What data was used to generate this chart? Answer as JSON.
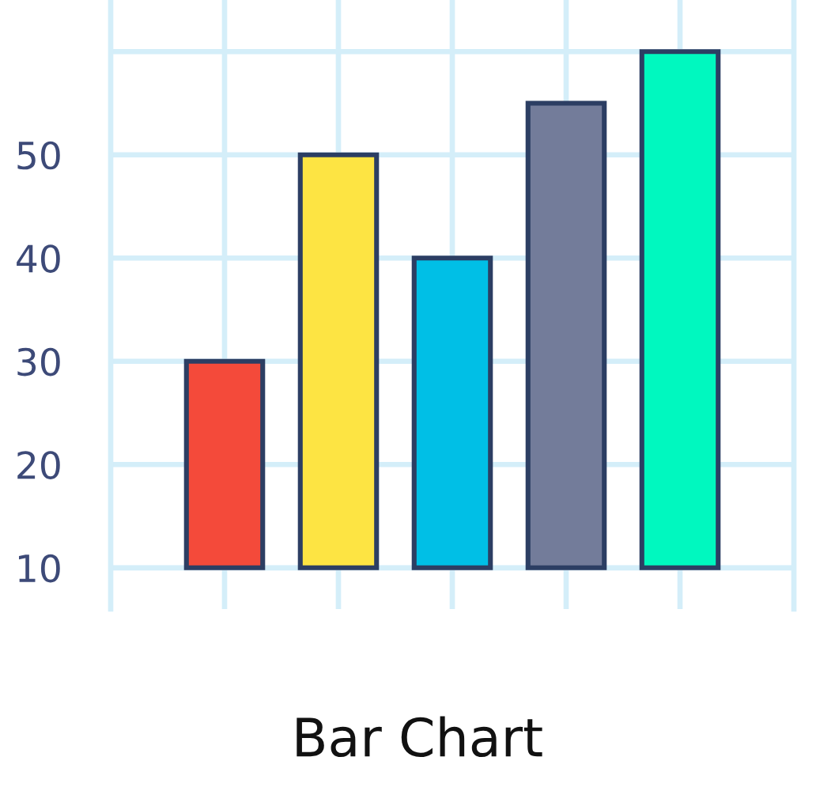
{
  "chart_data": {
    "type": "bar",
    "title": "Bar Chart",
    "categories": [
      null,
      null,
      null,
      null,
      null
    ],
    "base": [
      10,
      10,
      10,
      10,
      10
    ],
    "values": [
      20,
      40,
      30,
      45,
      50
    ],
    "colors": [
      "#f44a3a",
      "#fde443",
      "#00bfe6",
      "#737c9a",
      "#00f8bf"
    ],
    "ylim": [
      6,
      65
    ],
    "yticks": [
      10,
      20,
      30,
      40,
      50,
      {
        "value": 60,
        "label": null
      }
    ],
    "grid": true
  }
}
